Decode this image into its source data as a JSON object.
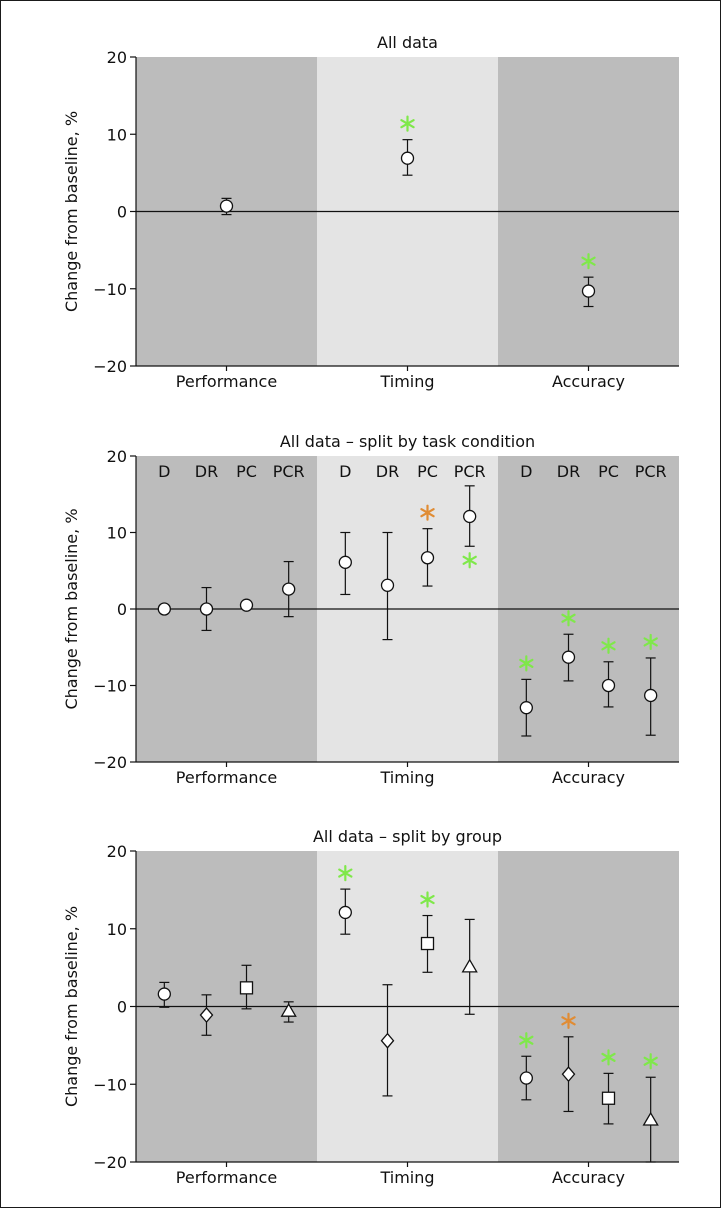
{
  "colors": {
    "panel_dark": "#bcbcbc",
    "panel_light": "#e4e4e4",
    "star_green": "#7fe84a",
    "star_orange": "#e08c34",
    "marker_fill": "#ffffff",
    "line": "#111111"
  },
  "chart_data": [
    {
      "type": "scatter",
      "title": "All data",
      "ylabel": "Change from baseline, %",
      "xlabel": "",
      "categories": [
        "Performance",
        "Timing",
        "Accuracy"
      ],
      "ylim": [
        -20,
        20
      ],
      "yticks": [
        20,
        10,
        0,
        -10,
        -20
      ],
      "ytick_labels": [
        "20",
        "10",
        "0",
        "−10",
        "−20"
      ],
      "zero_line": true,
      "sublabels": [],
      "points": [
        {
          "category": 0,
          "slot": 0,
          "slots": 1,
          "marker": "circle",
          "y": 0.7,
          "low": -0.4,
          "high": 1.7,
          "star": null,
          "star_pos": "above"
        },
        {
          "category": 1,
          "slot": 0,
          "slots": 1,
          "marker": "circle",
          "y": 6.9,
          "low": 4.7,
          "high": 9.3,
          "star": "green",
          "star_pos": "above"
        },
        {
          "category": 2,
          "slot": 0,
          "slots": 1,
          "marker": "circle",
          "y": -10.3,
          "low": -12.3,
          "high": -8.5,
          "star": "green",
          "star_pos": "above"
        }
      ]
    },
    {
      "type": "scatter",
      "title": "All data – split by task condition",
      "ylabel": "Change from baseline, %",
      "xlabel": "",
      "categories": [
        "Performance",
        "Timing",
        "Accuracy"
      ],
      "ylim": [
        -20,
        20
      ],
      "yticks": [
        20,
        10,
        0,
        -10,
        -20
      ],
      "ytick_labels": [
        "20",
        "10",
        "0",
        "−10",
        "−20"
      ],
      "zero_line": true,
      "sublabels": [
        "D",
        "DR",
        "PC",
        "PCR"
      ],
      "points": [
        {
          "category": 0,
          "slot": 0,
          "slots": 4,
          "marker": "circle",
          "y": 0.0,
          "low": null,
          "high": null,
          "star": null,
          "star_pos": "above"
        },
        {
          "category": 0,
          "slot": 1,
          "slots": 4,
          "marker": "circle",
          "y": 0.0,
          "low": -2.8,
          "high": 2.8,
          "star": null,
          "star_pos": "above"
        },
        {
          "category": 0,
          "slot": 2,
          "slots": 4,
          "marker": "circle",
          "y": 0.5,
          "low": null,
          "high": null,
          "star": null,
          "star_pos": "above"
        },
        {
          "category": 0,
          "slot": 3,
          "slots": 4,
          "marker": "circle",
          "y": 2.6,
          "low": -1.0,
          "high": 6.2,
          "star": null,
          "star_pos": "above"
        },
        {
          "category": 1,
          "slot": 0,
          "slots": 4,
          "marker": "circle",
          "y": 6.1,
          "low": 1.9,
          "high": 10.0,
          "star": null,
          "star_pos": "above"
        },
        {
          "category": 1,
          "slot": 1,
          "slots": 4,
          "marker": "circle",
          "y": 3.1,
          "low": -4.0,
          "high": 10.0,
          "star": null,
          "star_pos": "above"
        },
        {
          "category": 1,
          "slot": 2,
          "slots": 4,
          "marker": "circle",
          "y": 6.7,
          "low": 3.0,
          "high": 10.5,
          "star": "orange",
          "star_pos": "above"
        },
        {
          "category": 1,
          "slot": 3,
          "slots": 4,
          "marker": "circle",
          "y": 12.1,
          "low": 8.2,
          "high": 16.1,
          "star": "green",
          "star_pos": "below"
        },
        {
          "category": 2,
          "slot": 0,
          "slots": 4,
          "marker": "circle",
          "y": -12.9,
          "low": -16.6,
          "high": -9.2,
          "star": "green",
          "star_pos": "above"
        },
        {
          "category": 2,
          "slot": 1,
          "slots": 4,
          "marker": "circle",
          "y": -6.3,
          "low": -9.4,
          "high": -3.3,
          "star": "green",
          "star_pos": "above"
        },
        {
          "category": 2,
          "slot": 2,
          "slots": 4,
          "marker": "circle",
          "y": -10.0,
          "low": -12.8,
          "high": -6.9,
          "star": "green",
          "star_pos": "above"
        },
        {
          "category": 2,
          "slot": 3,
          "slots": 4,
          "marker": "circle",
          "y": -11.3,
          "low": -16.5,
          "high": -6.4,
          "star": "green",
          "star_pos": "above"
        }
      ]
    },
    {
      "type": "scatter",
      "title": "All data – split by group",
      "ylabel": "Change from baseline, %",
      "xlabel": "",
      "categories": [
        "Performance",
        "Timing",
        "Accuracy"
      ],
      "ylim": [
        -20,
        20
      ],
      "yticks": [
        20,
        10,
        0,
        -10,
        -20
      ],
      "ytick_labels": [
        "20",
        "10",
        "0",
        "−10",
        "−20"
      ],
      "zero_line": true,
      "sublabels": [],
      "points": [
        {
          "category": 0,
          "slot": 0,
          "slots": 4,
          "marker": "circle",
          "y": 1.6,
          "low": -0.1,
          "high": 3.1,
          "star": null,
          "star_pos": "above"
        },
        {
          "category": 0,
          "slot": 1,
          "slots": 4,
          "marker": "diamond",
          "y": -1.1,
          "low": -3.7,
          "high": 1.5,
          "star": null,
          "star_pos": "above"
        },
        {
          "category": 0,
          "slot": 2,
          "slots": 4,
          "marker": "square",
          "y": 2.4,
          "low": -0.3,
          "high": 5.3,
          "star": null,
          "star_pos": "above"
        },
        {
          "category": 0,
          "slot": 3,
          "slots": 4,
          "marker": "triangle",
          "y": -0.6,
          "low": -2.0,
          "high": 0.6,
          "star": null,
          "star_pos": "above"
        },
        {
          "category": 1,
          "slot": 0,
          "slots": 4,
          "marker": "circle",
          "y": 12.1,
          "low": 9.3,
          "high": 15.1,
          "star": "green",
          "star_pos": "above"
        },
        {
          "category": 1,
          "slot": 1,
          "slots": 4,
          "marker": "diamond",
          "y": -4.4,
          "low": -11.5,
          "high": 2.8,
          "star": null,
          "star_pos": "above"
        },
        {
          "category": 1,
          "slot": 2,
          "slots": 4,
          "marker": "square",
          "y": 8.1,
          "low": 4.4,
          "high": 11.7,
          "star": "green",
          "star_pos": "above"
        },
        {
          "category": 1,
          "slot": 3,
          "slots": 4,
          "marker": "triangle",
          "y": 5.1,
          "low": -1.0,
          "high": 11.2,
          "star": null,
          "star_pos": "above"
        },
        {
          "category": 2,
          "slot": 0,
          "slots": 4,
          "marker": "circle",
          "y": -9.2,
          "low": -12.0,
          "high": -6.4,
          "star": "green",
          "star_pos": "above"
        },
        {
          "category": 2,
          "slot": 1,
          "slots": 4,
          "marker": "diamond",
          "y": -8.7,
          "low": -13.5,
          "high": -3.9,
          "star": "orange",
          "star_pos": "above"
        },
        {
          "category": 2,
          "slot": 2,
          "slots": 4,
          "marker": "square",
          "y": -11.8,
          "low": -15.1,
          "high": -8.6,
          "star": "green",
          "star_pos": "above"
        },
        {
          "category": 2,
          "slot": 3,
          "slots": 4,
          "marker": "triangle",
          "y": -14.6,
          "low": -20.0,
          "high": -9.1,
          "star": "green",
          "star_pos": "above"
        }
      ]
    }
  ]
}
